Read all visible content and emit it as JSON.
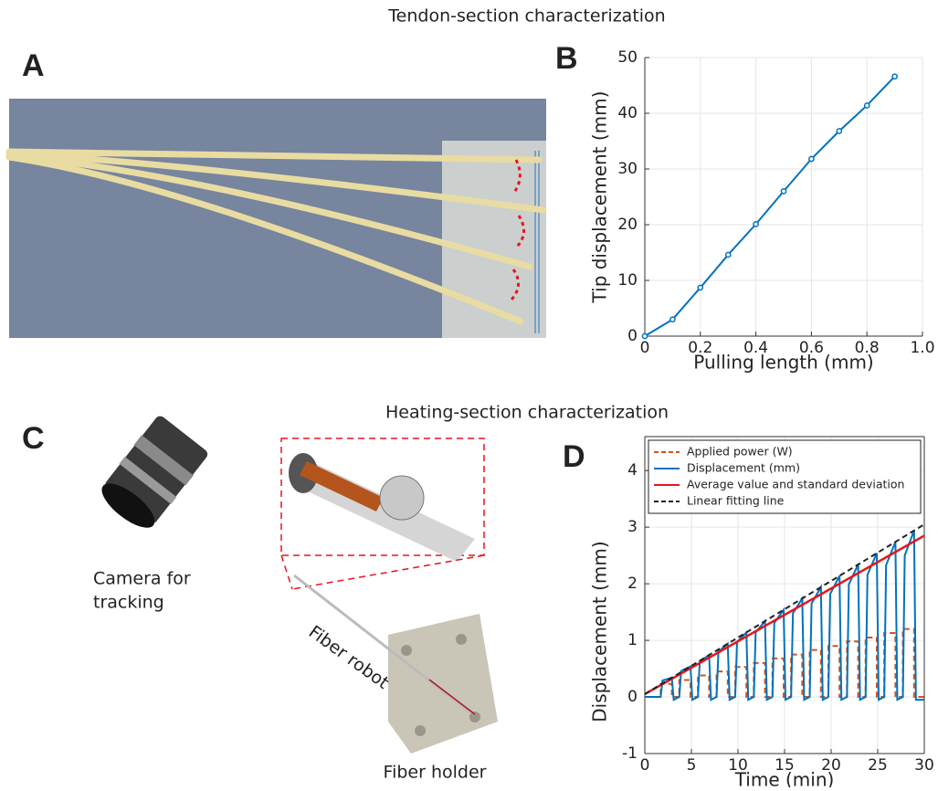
{
  "header": {
    "top_title": "Tendon-section characterization",
    "bottom_title": "Heating-section characterization"
  },
  "panels": {
    "a": "A",
    "b": "B",
    "c": "C",
    "d": "D"
  },
  "photo_labels": {
    "camera": [
      "Camera for",
      "tracking"
    ],
    "fiber_robot": "Fiber robot",
    "fiber_holder": "Fiber holder"
  },
  "chart_data": [
    {
      "type": "line",
      "xlabel": "Pulling length (mm)",
      "ylabel": "Tip displacement (mm)",
      "series": [
        {
          "name": "Tip displacement",
          "color": "#0072bd",
          "markers": true,
          "x": [
            0,
            0.1,
            0.2,
            0.3,
            0.4,
            0.5,
            0.6,
            0.7,
            0.8,
            0.9
          ],
          "values": [
            0,
            3,
            8.7,
            14.6,
            20.1,
            26,
            31.8,
            36.8,
            41.4,
            46.6
          ]
        }
      ],
      "xlim": [
        0,
        1
      ],
      "xticks": [
        0,
        0.2,
        0.4,
        0.6,
        0.8,
        {
          "value": 1,
          "label": "1.0"
        }
      ],
      "ylim": [
        0,
        50
      ],
      "yticks": [
        0,
        10,
        20,
        30,
        40,
        50
      ],
      "grid": true,
      "box": false
    },
    {
      "type": "line",
      "xlabel": "Time (min)",
      "ylabel": "Displacement (mm)",
      "legend": "upper left",
      "box": true,
      "grid": true,
      "xlim": [
        0,
        30
      ],
      "xticks": [
        0,
        5,
        10,
        15,
        20,
        25,
        30
      ],
      "ylim": [
        -1,
        4.6
      ],
      "yticks": [
        -1,
        0,
        1,
        2,
        3,
        4
      ],
      "series": [
        {
          "name": "Applied power (W)",
          "color": "#d95319",
          "dashed": true,
          "x": [
            0,
            1.7,
            1.7,
            2.9,
            2.9,
            3.7,
            3.7,
            4.9,
            4.9,
            5.7,
            5.7,
            6.9,
            6.9,
            7.7,
            7.7,
            8.9,
            8.9,
            9.7,
            9.7,
            10.9,
            10.9,
            11.7,
            11.7,
            12.9,
            12.9,
            13.7,
            13.7,
            14.9,
            14.9,
            15.7,
            15.7,
            16.9,
            16.9,
            17.7,
            17.7,
            18.9,
            18.9,
            19.7,
            19.7,
            20.9,
            20.9,
            21.7,
            21.7,
            22.9,
            22.9,
            23.7,
            23.7,
            24.9,
            24.9,
            25.7,
            25.7,
            26.9,
            26.9,
            27.7,
            27.7,
            28.9,
            28.9,
            30
          ],
          "values": [
            0,
            0,
            0.23,
            0.23,
            0,
            0,
            0.3,
            0.3,
            0,
            0,
            0.38,
            0.38,
            0,
            0,
            0.45,
            0.45,
            0,
            0,
            0.53,
            0.53,
            0,
            0,
            0.6,
            0.6,
            0,
            0,
            0.68,
            0.68,
            0,
            0,
            0.75,
            0.75,
            0,
            0,
            0.83,
            0.83,
            0,
            0,
            0.9,
            0.9,
            0,
            0,
            0.98,
            0.98,
            0,
            0,
            1.05,
            1.05,
            0,
            0,
            1.13,
            1.13,
            0,
            0,
            1.2,
            1.2,
            0,
            0
          ]
        },
        {
          "name": "Displacement (mm)",
          "color": "#0072bd",
          "x": [
            0,
            1.7,
            1.9,
            2.9,
            3.1,
            3.7,
            3.9,
            4.9,
            5.1,
            5.7,
            5.9,
            6.9,
            7.1,
            7.7,
            7.9,
            8.9,
            9.1,
            9.7,
            9.9,
            10.9,
            11.1,
            11.7,
            11.9,
            12.9,
            13.1,
            13.7,
            13.9,
            14.9,
            15.1,
            15.7,
            15.9,
            16.9,
            17.1,
            17.7,
            17.9,
            18.9,
            19.1,
            19.7,
            19.9,
            20.9,
            21.1,
            21.7,
            21.9,
            22.9,
            23.1,
            23.7,
            23.9,
            24.9,
            25.1,
            25.7,
            25.9,
            26.9,
            27.1,
            27.7,
            27.9,
            28.9,
            29.1,
            30
          ],
          "values": [
            0,
            0,
            0.29,
            0.34,
            -0.05,
            0,
            0.46,
            0.54,
            -0.05,
            0,
            0.63,
            0.74,
            -0.05,
            0,
            0.8,
            0.94,
            -0.05,
            0,
            0.97,
            1.14,
            -0.05,
            0,
            1.14,
            1.34,
            -0.05,
            0,
            1.31,
            1.54,
            -0.05,
            0,
            1.48,
            1.74,
            -0.05,
            0,
            1.65,
            1.94,
            -0.05,
            0,
            1.82,
            2.14,
            -0.05,
            0,
            1.99,
            2.34,
            -0.05,
            0,
            2.16,
            2.54,
            -0.05,
            0,
            2.33,
            2.74,
            -0.05,
            0,
            2.5,
            2.94,
            -0.05,
            -0.05
          ]
        },
        {
          "name": "Average value and standard deviation",
          "color": "#e8141b",
          "x": [
            0,
            30
          ],
          "values": [
            0.05,
            2.85
          ]
        },
        {
          "name": "Linear fitting line",
          "color": "#222222",
          "dashed": true,
          "x": [
            0,
            30
          ],
          "values": [
            0.05,
            3.05
          ]
        }
      ]
    }
  ]
}
